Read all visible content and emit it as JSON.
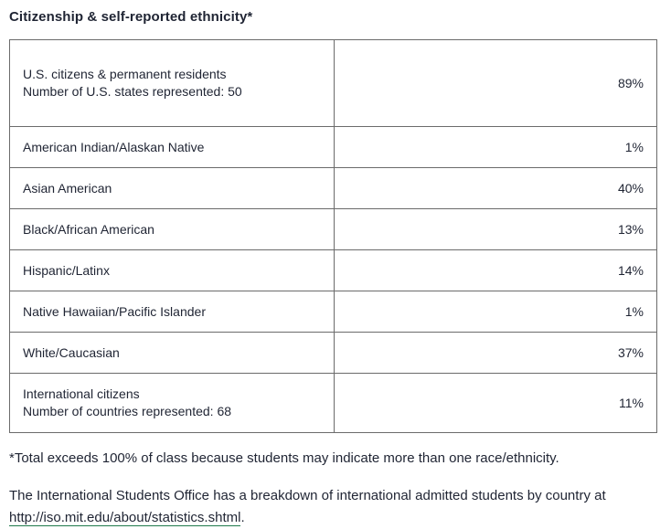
{
  "title": "Citizenship & self-reported ethnicity",
  "title_asterisk": "*",
  "rows": [
    {
      "label_lines": [
        "U.S. citizens & permanent residents",
        "Number of U.S. states represented: 50"
      ],
      "value": "89%"
    },
    {
      "label_lines": [
        "American Indian/Alaskan Native"
      ],
      "value": "1%"
    },
    {
      "label_lines": [
        "Asian American"
      ],
      "value": "40%"
    },
    {
      "label_lines": [
        "Black/African American"
      ],
      "value": "13%"
    },
    {
      "label_lines": [
        "Hispanic/Latinx"
      ],
      "value": "14%"
    },
    {
      "label_lines": [
        "Native Hawaiian/Pacific Islander"
      ],
      "value": "1%"
    },
    {
      "label_lines": [
        "White/Caucasian"
      ],
      "value": "37%"
    },
    {
      "label_lines": [
        "International citizens",
        "Number of countries represented: 68"
      ],
      "value": "11%"
    }
  ],
  "footnote": "*Total exceeds 100% of class because students may indicate more than one race/ethnicity.",
  "note": {
    "text_before": "The International Students Office has a breakdown of international admitted students by country at ",
    "link_text": "http://iso.mit.edu/about/statistics.shtml",
    "text_after": "."
  },
  "colors": {
    "text": "#1f2433",
    "border": "#6b6b6b",
    "link_underline": "#1f7a4c"
  }
}
